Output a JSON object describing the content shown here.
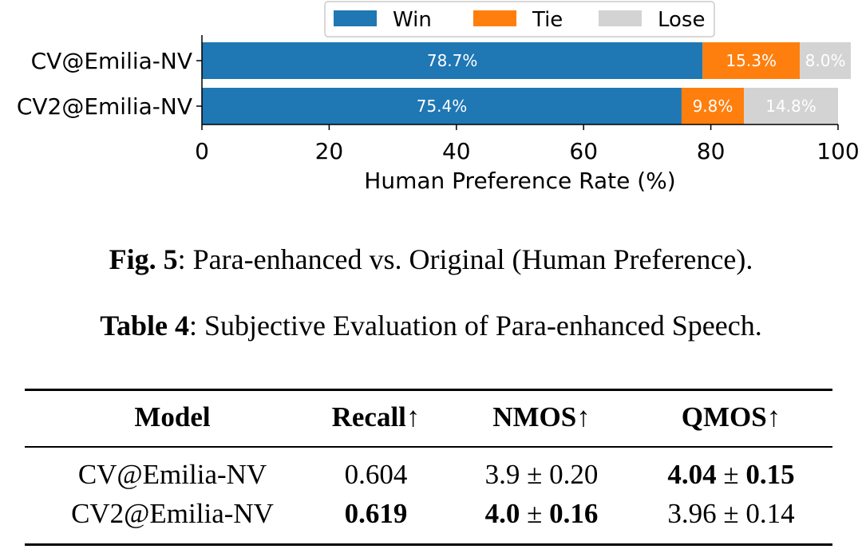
{
  "chart_data": {
    "type": "bar",
    "orientation": "horizontal",
    "stacked": true,
    "categories": [
      "CV@Emilia-NV",
      "CV2@Emilia-NV"
    ],
    "series": [
      {
        "name": "Win",
        "color": "#1f77b4",
        "values": [
          78.7,
          75.4
        ],
        "labels": [
          "78.7%",
          "75.4%"
        ]
      },
      {
        "name": "Tie",
        "color": "#ff7f0e",
        "values": [
          15.3,
          9.8
        ],
        "labels": [
          "15.3%",
          "9.8%"
        ]
      },
      {
        "name": "Lose",
        "color": "#d3d3d3",
        "values": [
          8.0,
          14.8
        ],
        "labels": [
          "8.0%",
          "14.8%"
        ]
      }
    ],
    "xlabel": "Human Preference Rate (%)",
    "xlim": [
      0,
      100
    ],
    "xticks": [
      0,
      20,
      40,
      60,
      80,
      100
    ],
    "legend": "top",
    "title": ""
  },
  "figure": {
    "number": "Fig. 5",
    "caption": "Para-enhanced vs. Original (Human Preference)."
  },
  "table": {
    "number": "Table 4",
    "caption": "Subjective Evaluation of Para-enhanced Speech.",
    "headers": [
      "Model",
      "Recall↑",
      "NMOS↑",
      "QMOS↑"
    ],
    "rows": [
      {
        "model": "CV@Emilia-NV",
        "recall": "0.604",
        "nmos_mean": "3.9",
        "nmos_std": "0.20",
        "qmos_mean": "4.04",
        "qmos_std": "0.15"
      },
      {
        "model": "CV2@Emilia-NV",
        "recall": "0.619",
        "nmos_mean": "4.0",
        "nmos_std": "0.16",
        "qmos_mean": "3.96",
        "qmos_std": "0.14"
      }
    ],
    "pm_symbol": "±"
  }
}
